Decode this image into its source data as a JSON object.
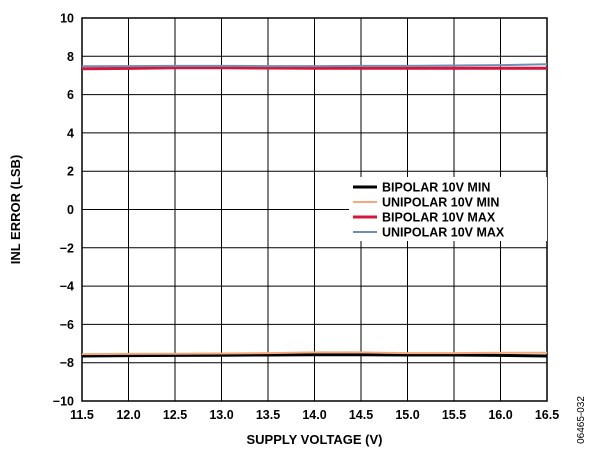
{
  "chart_data": {
    "type": "line",
    "title": "",
    "xlabel": "SUPPLY VOLTAGE (V)",
    "ylabel": "INL ERROR (LSB)",
    "xlim": [
      11.5,
      16.5
    ],
    "ylim": [
      -10,
      10
    ],
    "xticks": [
      11.5,
      12.0,
      12.5,
      13.0,
      13.5,
      14.0,
      14.5,
      15.0,
      15.5,
      16.0,
      16.5
    ],
    "xtick_labels": [
      "11.5",
      "12.0",
      "12.5",
      "13.0",
      "13.5",
      "14.0",
      "14.5",
      "15.0",
      "15.5",
      "16.0",
      "16.5"
    ],
    "yticks": [
      -10,
      -8,
      -6,
      -4,
      -2,
      0,
      2,
      4,
      6,
      8,
      10
    ],
    "ytick_labels": [
      "−10",
      "−8",
      "−6",
      "−4",
      "−2",
      "0",
      "2",
      "4",
      "6",
      "8",
      "10"
    ],
    "grid": true,
    "legend_position": "center-right",
    "figure_id": "06465-032",
    "x": [
      11.5,
      12.0,
      12.5,
      13.0,
      13.5,
      14.0,
      14.5,
      15.0,
      15.5,
      16.0,
      16.5
    ],
    "series": [
      {
        "name": "BIPOLAR 10V MIN",
        "color": "#000000",
        "width": 3,
        "values": [
          -7.65,
          -7.63,
          -7.62,
          -7.61,
          -7.6,
          -7.58,
          -7.58,
          -7.6,
          -7.6,
          -7.62,
          -7.65
        ]
      },
      {
        "name": "UNIPOLAR 10V MIN",
        "color": "#f5a97a",
        "width": 2,
        "values": [
          -7.55,
          -7.54,
          -7.53,
          -7.52,
          -7.5,
          -7.46,
          -7.46,
          -7.5,
          -7.5,
          -7.48,
          -7.48
        ]
      },
      {
        "name": "BIPOLAR 10V MAX",
        "color": "#d7143c",
        "width": 3,
        "values": [
          7.35,
          7.37,
          7.4,
          7.4,
          7.39,
          7.38,
          7.38,
          7.38,
          7.38,
          7.38,
          7.38
        ]
      },
      {
        "name": "UNIPOLAR 10V MAX",
        "color": "#6e8fb3",
        "width": 2,
        "values": [
          7.48,
          7.49,
          7.5,
          7.5,
          7.49,
          7.49,
          7.5,
          7.5,
          7.52,
          7.54,
          7.58
        ]
      }
    ]
  }
}
